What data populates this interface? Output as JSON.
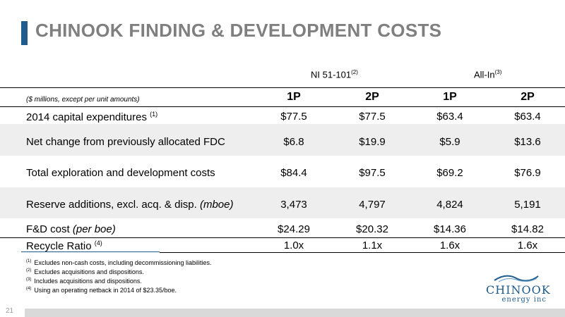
{
  "title": "CHINOOK FINDING & DEVELOPMENT COSTS",
  "standards": [
    {
      "label": "NI 51-101",
      "note": "(2)"
    },
    {
      "label": "All-In",
      "note": "(3)"
    }
  ],
  "table": {
    "units": "($ millions, except per unit amounts)",
    "columns": [
      "1P",
      "2P",
      "1P",
      "2P"
    ],
    "rows": [
      {
        "label": "2014 capital expenditures",
        "note": "(1)",
        "values": [
          "$77.5",
          "$77.5",
          "$63.4",
          "$63.4"
        ]
      },
      {
        "label": "Net change from previously allocated FDC",
        "values": [
          "$6.8",
          "$19.9",
          "$5.9",
          "$13.6"
        ]
      },
      {
        "label": "Total exploration and development costs",
        "values": [
          "$84.4",
          "$97.5",
          "$69.2",
          "$76.9"
        ]
      },
      {
        "label": "Reserve additions, excl. acq. & disp.",
        "label_italic": "(mboe)",
        "values": [
          "3,473",
          "4,797",
          "4,824",
          "5,191"
        ]
      },
      {
        "label": "F&D cost",
        "label_italic": "(per boe)",
        "values": [
          "$24.29",
          "$20.32",
          "$14.36",
          "$14.82"
        ]
      },
      {
        "label": "Recycle Ratio",
        "note": "(4)",
        "values": [
          "1.0x",
          "1.1x",
          "1.6x",
          "1.6x"
        ]
      }
    ]
  },
  "footnotes": [
    {
      "num": "(1)",
      "text": "Excludes non-cash costs, including decommissioning liabilities."
    },
    {
      "num": "(2)",
      "text": "Excludes acquisitions and dispositions."
    },
    {
      "num": "(3)",
      "text": "Includes acquisitions and dispositions."
    },
    {
      "num": "(4)",
      "text": "Using an operating netback in 2014 of $23.35/boe."
    }
  ],
  "page_number": "21",
  "logo": {
    "name": "CHINOOK",
    "tagline": "energy inc",
    "color": "#1f5b8c"
  },
  "colors": {
    "accent": "#1f5b8c",
    "title": "#7f7f7f",
    "stripe": "#eeeeee"
  }
}
